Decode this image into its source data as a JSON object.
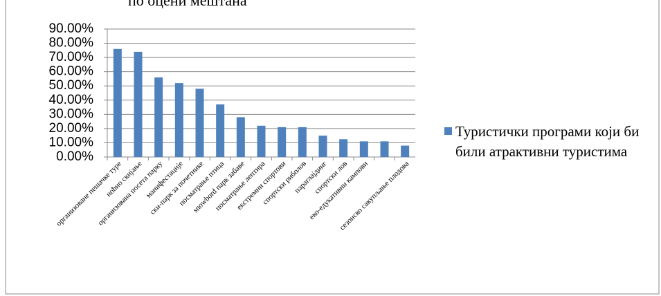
{
  "chart_data": {
    "type": "bar",
    "title": "по оцени мештана",
    "categories": [
      "организоване пешачке туре",
      "ноћно скијање",
      "организована посета парку",
      "манифестације",
      "ски-парк за почетнике",
      "посматрање птица",
      "snowbord парк забаве",
      "посматрање лептира",
      "екстремни спортови",
      "спортски риболов",
      "параглајдинг",
      "спортски лов",
      "еко-едукативни кампови",
      null,
      "сезонско сакупљање плодова"
    ],
    "series": [
      {
        "name": "Туристички програми који би били атрактивни туристима",
        "color": "#4f81bd",
        "values": [
          76,
          74,
          56,
          52,
          48,
          37,
          28,
          22,
          21,
          21,
          15,
          12.5,
          11,
          11,
          8
        ]
      }
    ],
    "ylim": [
      0,
      90
    ],
    "yticks": [
      {
        "value": 0,
        "label": "0.00%"
      },
      {
        "value": 10,
        "label": "10.00%"
      },
      {
        "value": 20,
        "label": "20.00%"
      },
      {
        "value": 30,
        "label": "30.00%"
      },
      {
        "value": 40,
        "label": "40.00%"
      },
      {
        "value": 50,
        "label": "50.00%"
      },
      {
        "value": 60,
        "label": "60.00%"
      },
      {
        "value": 70,
        "label": "70.00%"
      },
      {
        "value": 80,
        "label": "80.00%"
      },
      {
        "value": 90,
        "label": "90.00%"
      }
    ],
    "grid": true,
    "legend": "right"
  }
}
